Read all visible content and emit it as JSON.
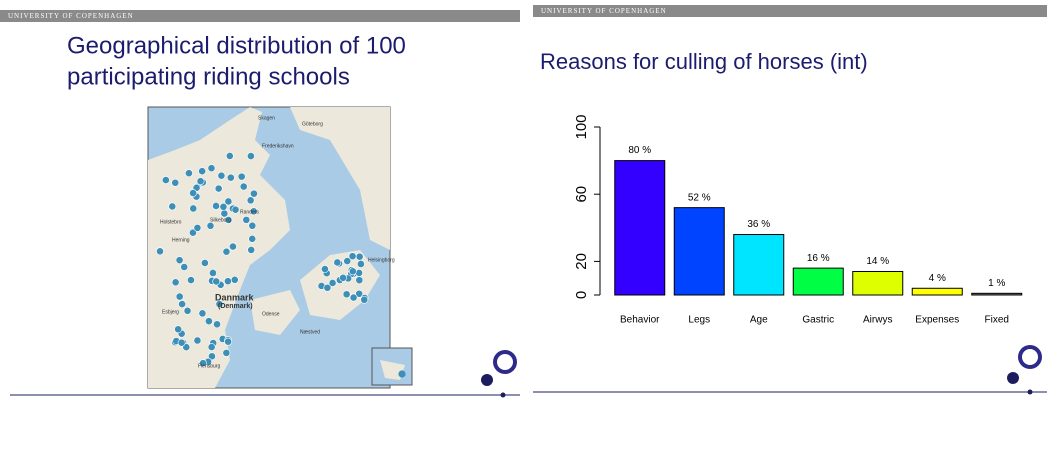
{
  "left_slide": {
    "header": "UNIVERSITY OF COPENHAGEN",
    "title_lines": [
      "Geographical distribution of 100",
      "participating riding schools"
    ],
    "map_labels": [
      "Skagen",
      "Göteborg",
      "Frederikshavn",
      "Holstebro",
      "Herning",
      "Silkeborg",
      "Randers",
      "Danmark",
      "(Denmark)",
      "Esbjerg",
      "Odense",
      "Næstved",
      "Helsingborg",
      "Flensburg"
    ]
  },
  "right_slide": {
    "header": "UNIVERSITY OF COPENHAGEN"
  },
  "chart_data": {
    "type": "bar",
    "title": "Reasons for culling of horses (int)",
    "categories": [
      "Behavior",
      "Legs",
      "Age",
      "Gastric",
      "Airwys",
      "Expenses",
      "Fixed"
    ],
    "values": [
      80,
      52,
      36,
      16,
      14,
      4,
      1
    ],
    "value_labels": [
      "80 %",
      "52 %",
      "36 %",
      "16 %",
      "14 %",
      "4 %",
      "1 %"
    ],
    "colors": [
      "#3300ff",
      "#0044ff",
      "#00e5ff",
      "#00ff44",
      "#ddff00",
      "#ffff00",
      "#777777"
    ],
    "ylim": [
      0,
      100
    ],
    "yticks": [
      0,
      20,
      60,
      100
    ],
    "grid": false
  }
}
